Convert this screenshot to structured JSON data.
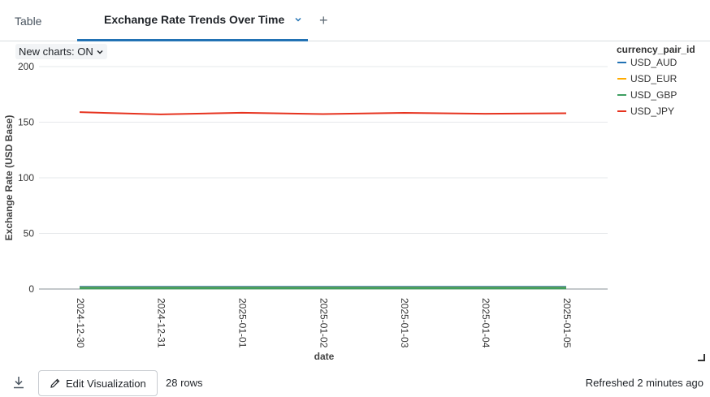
{
  "tabs": {
    "table_label": "Table",
    "active_label": "Exchange Rate Trends Over Time",
    "add_label": "+"
  },
  "toolbar": {
    "new_charts_label": "New charts: ON"
  },
  "chart_data": {
    "type": "line",
    "x": [
      "2024-12-30",
      "2024-12-31",
      "2025-01-01",
      "2025-01-02",
      "2025-01-03",
      "2025-01-04",
      "2025-01-05"
    ],
    "series": [
      {
        "name": "USD_AUD",
        "color": "#2272b4",
        "values": [
          1.6,
          1.6,
          1.6,
          1.6,
          1.6,
          1.6,
          1.6
        ]
      },
      {
        "name": "USD_EUR",
        "color": "#ffab00",
        "values": [
          0.96,
          0.96,
          0.96,
          0.96,
          0.96,
          0.96,
          0.96
        ]
      },
      {
        "name": "USD_GBP",
        "color": "#3f9e61",
        "values": [
          0.8,
          0.8,
          0.8,
          0.8,
          0.8,
          0.8,
          0.8
        ]
      },
      {
        "name": "USD_JPY",
        "color": "#e6331f",
        "values": [
          159,
          157,
          158.5,
          157.3,
          158.4,
          157.6,
          158
        ]
      }
    ],
    "yticks": [
      "0",
      "50",
      "100",
      "150",
      "200"
    ],
    "ylim": [
      0,
      200
    ],
    "xlabel": "date",
    "ylabel": "Exchange Rate (USD Base)",
    "legend_title": "currency_pair_id",
    "legend_position": "top-right",
    "grid": true
  },
  "footer": {
    "edit_label": "Edit Visualization",
    "rows_label": "28 rows",
    "refreshed_label": "Refreshed 2 minutes ago"
  }
}
